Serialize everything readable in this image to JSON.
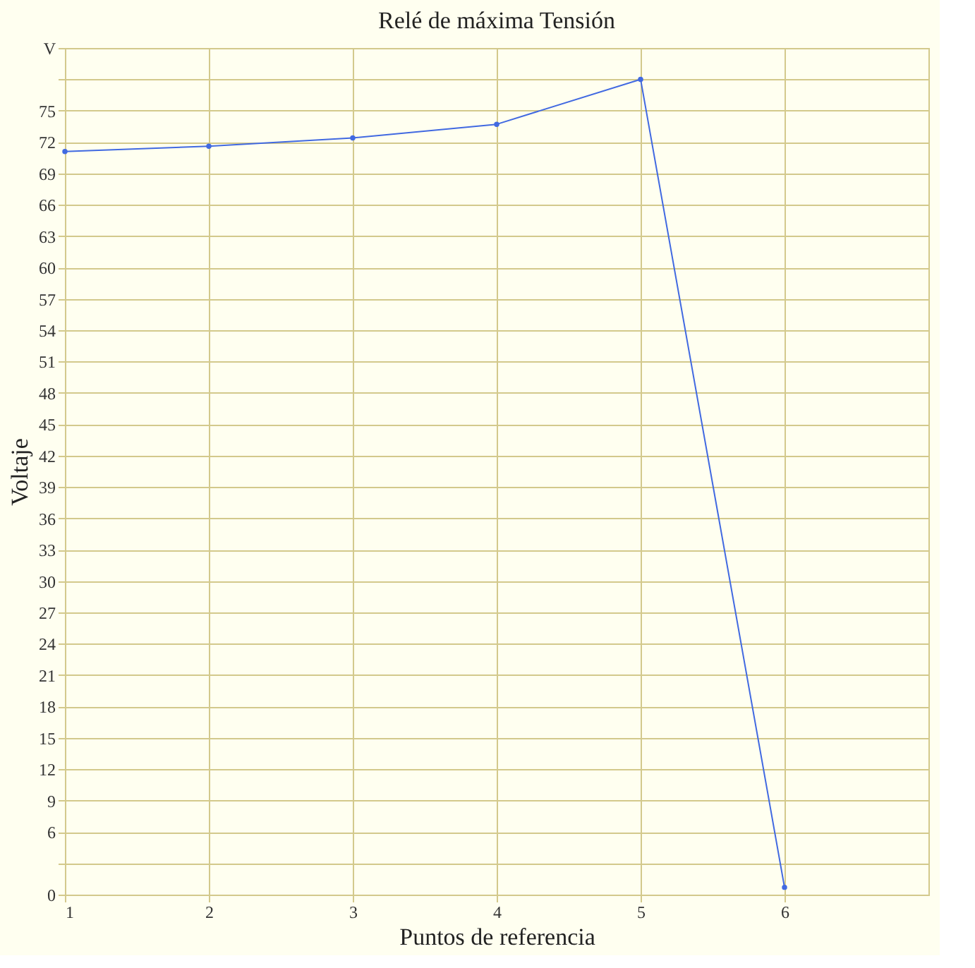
{
  "chart_data": {
    "type": "line",
    "title": "Relé de máxima Tensión",
    "xlabel": "Puntos de referencia",
    "ylabel": "Voltaje",
    "x": [
      1,
      2,
      3,
      4,
      5,
      6
    ],
    "series": [
      {
        "color": "#4169e1",
        "values": [
          71.1,
          71.6,
          72.4,
          73.7,
          78,
          0.7
        ]
      }
    ],
    "xlim": [
      1,
      7
    ],
    "xticks": [
      1,
      2,
      3,
      4,
      5,
      6
    ],
    "ylim": [
      0,
      81
    ],
    "yticks": [
      {
        "value": 0,
        "label": "0"
      },
      {
        "value": 3,
        "label": null
      },
      6,
      9,
      12,
      15,
      18,
      21,
      24,
      27,
      30,
      33,
      36,
      39,
      42,
      45,
      48,
      51,
      54,
      57,
      60,
      63,
      66,
      69,
      72,
      75,
      {
        "value": 78,
        "label": null
      },
      {
        "value": 81,
        "label": "V"
      }
    ],
    "grid": true,
    "marker": "circle",
    "line_style": "solid",
    "legend": false
  }
}
